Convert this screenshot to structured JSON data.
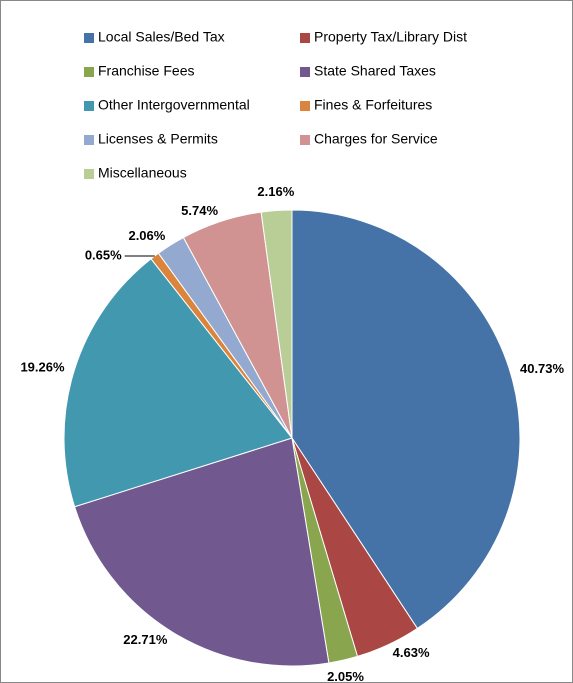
{
  "chart_data": {
    "type": "pie",
    "categories": [
      "Local Sales/Bed Tax",
      "Property Tax/Library Dist",
      "Franchise Fees",
      "State Shared Taxes",
      "Other Intergovernmental",
      "Fines & Forfeitures",
      "Licenses & Permits",
      "Charges for Service",
      "Miscellaneous"
    ],
    "values": [
      40.73,
      4.63,
      2.05,
      22.71,
      19.26,
      0.65,
      2.06,
      5.74,
      2.16
    ],
    "value_labels": [
      "40.73%",
      "4.63%",
      "2.05%",
      "22.71%",
      "19.26%",
      "0.65%",
      "2.06%",
      "5.74%",
      "2.16%"
    ],
    "colors": [
      "#4572a7",
      "#aa4643",
      "#89a54e",
      "#71588f",
      "#4198af",
      "#db843d",
      "#93a9cf",
      "#d19392",
      "#b9cd96"
    ]
  }
}
